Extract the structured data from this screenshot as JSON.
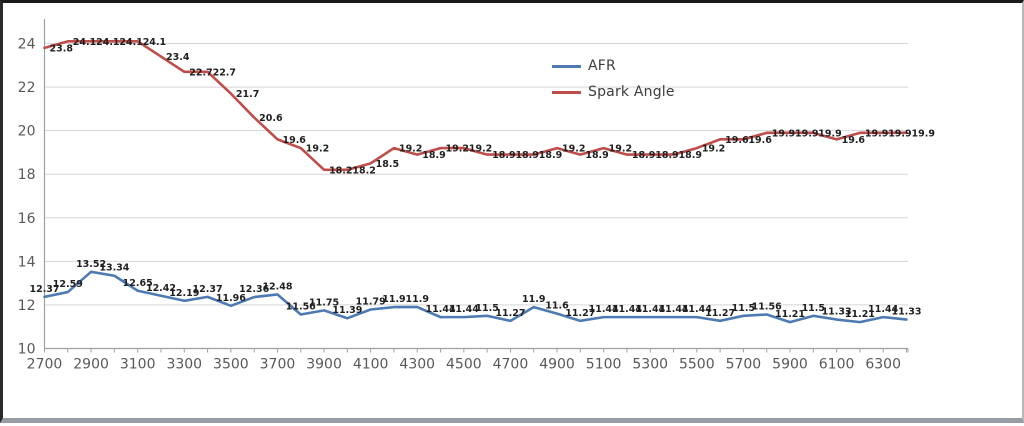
{
  "chart_data": {
    "type": "line",
    "title": "",
    "xlabel": "",
    "ylabel": "",
    "x_start_rpm": 2700,
    "x_step_rpm": 100,
    "x_tick_labels": [
      "2700",
      "2900",
      "3100",
      "3300",
      "3500",
      "3700",
      "3900",
      "4100",
      "4300",
      "4500",
      "4700",
      "4900",
      "5100",
      "5300",
      "5500",
      "5700",
      "5900",
      "6100",
      "6300"
    ],
    "y_tick_labels": [
      "10",
      "12",
      "14",
      "16",
      "18",
      "20",
      "22",
      "24"
    ],
    "ylim": [
      10,
      25
    ],
    "grid": "horizontal",
    "legend_position": "top-center-overlay",
    "series": [
      {
        "name": "AFR",
        "color": "#4d7ab2",
        "label_position": "above",
        "values": [
          12.37,
          12.59,
          13.52,
          13.34,
          12.65,
          12.42,
          12.19,
          12.37,
          11.96,
          12.36,
          12.48,
          11.56,
          11.75,
          11.39,
          11.79,
          11.9,
          11.9,
          11.44,
          11.44,
          11.5,
          11.27,
          11.9,
          11.6,
          11.27,
          11.44,
          11.44,
          11.44,
          11.44,
          11.44,
          11.27,
          11.5,
          11.56,
          11.21,
          11.5,
          11.33,
          11.21,
          11.44,
          11.33
        ]
      },
      {
        "name": "Spark Angle",
        "color": "#bf4d4a",
        "label_position": "right",
        "values": [
          23.8,
          24.1,
          24.1,
          24.1,
          24.1,
          23.4,
          22.7,
          22.7,
          21.7,
          20.6,
          19.6,
          19.2,
          18.2,
          18.2,
          18.5,
          19.2,
          18.9,
          19.2,
          19.2,
          18.9,
          18.9,
          18.9,
          19.2,
          18.9,
          19.2,
          18.9,
          18.9,
          18.9,
          19.2,
          19.6,
          19.6,
          19.9,
          19.9,
          19.9,
          19.6,
          19.9,
          19.9,
          19.9
        ]
      }
    ]
  },
  "colors": {
    "background": "#ffffff",
    "grid": "#d5d5d5",
    "axis": "#9f9f9f",
    "tick_text": "#595959",
    "data_label": "#1f1f1f"
  }
}
